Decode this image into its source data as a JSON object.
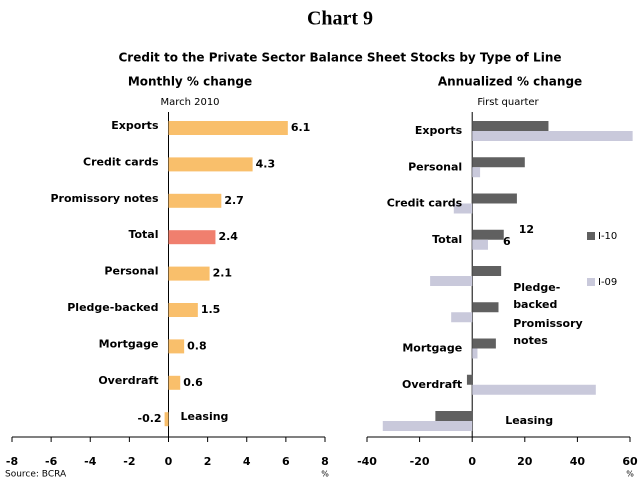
{
  "title": "Chart 9",
  "subtitle": "Credit to the Private Sector Balance Sheet Stocks by Type of Line",
  "source": "Source: BCRA",
  "chart_data": [
    {
      "type": "hbar",
      "title": "Monthly % change",
      "subtitle": "March 2010",
      "categories": [
        "Exports",
        "Credit cards",
        "Promissory notes",
        "Total",
        "Personal",
        "Pledge-backed",
        "Mortgage",
        "Overdraft",
        "Leasing"
      ],
      "series": [
        {
          "name": "March 2010",
          "color": "#f9bf6b",
          "values": [
            6.1,
            4.3,
            2.7,
            2.4,
            2.1,
            1.5,
            0.8,
            0.6,
            -0.2
          ]
        }
      ],
      "highlight": {
        "category": "Total",
        "color": "#f07f6e"
      },
      "xlim": [
        -8,
        8
      ],
      "xticks": [
        -8,
        -6,
        -4,
        -2,
        0,
        2,
        4,
        6,
        8
      ],
      "xlabel": "%"
    },
    {
      "type": "hbar-grouped",
      "title": "Annualized % change",
      "subtitle": "First quarter",
      "categories": [
        "Exports",
        "Personal",
        "Credit cards",
        "Total",
        "Pledge-backed",
        "Promissory notes",
        "Mortgage",
        "Overdraft",
        "Leasing"
      ],
      "series": [
        {
          "name": "I-10",
          "color": "#606060",
          "values": [
            29,
            20,
            17,
            12,
            11,
            10,
            9,
            -2,
            -14
          ]
        },
        {
          "name": "I-09",
          "color": "#c9c9db",
          "values": [
            61,
            3,
            -7,
            6,
            -16,
            -8,
            2,
            47,
            -34
          ]
        }
      ],
      "xlim": [
        -40,
        60
      ],
      "xticks": [
        -40,
        -20,
        0,
        20,
        40,
        60
      ],
      "xlabel": "%"
    }
  ]
}
